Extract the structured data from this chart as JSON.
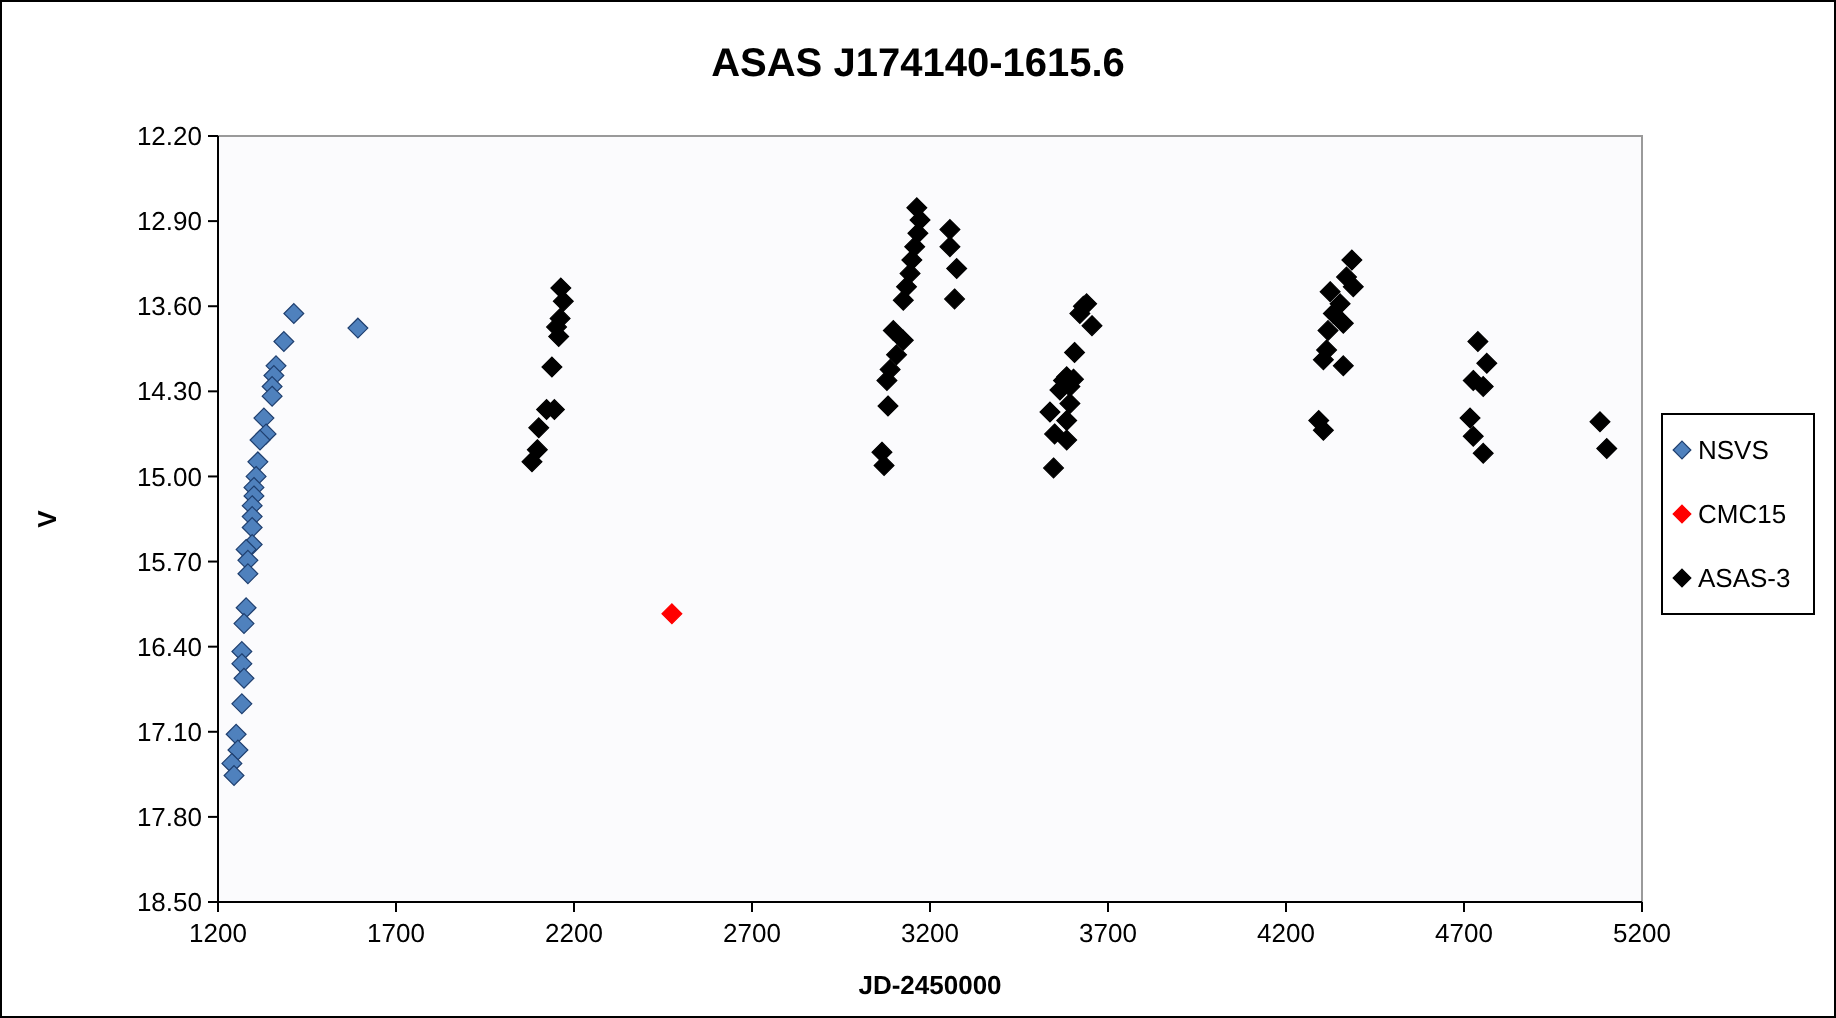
{
  "chart_data": {
    "type": "scatter",
    "title": "ASAS J174140-1615.6",
    "xlabel": "JD-2450000",
    "ylabel": "V",
    "xlim": [
      1200,
      5200
    ],
    "xticks": [
      1200,
      1700,
      2200,
      2700,
      3200,
      3700,
      4200,
      4700,
      5200
    ],
    "ylim": [
      18.5,
      12.2
    ],
    "yticks": [
      {
        "value": 12.2,
        "label": "12.20"
      },
      {
        "value": 12.9,
        "label": "12.90"
      },
      {
        "value": 13.6,
        "label": "13.60"
      },
      {
        "value": 14.3,
        "label": "14.30"
      },
      {
        "value": 15.0,
        "label": "15.00"
      },
      {
        "value": 15.7,
        "label": "15.70"
      },
      {
        "value": 16.4,
        "label": "16.40"
      },
      {
        "value": 17.1,
        "label": "17.10"
      },
      {
        "value": 17.8,
        "label": "17.80"
      },
      {
        "value": 18.5,
        "label": "18.50"
      }
    ],
    "grid": false,
    "legend": "right",
    "marker": "diamond",
    "series": [
      {
        "name": "NSVS",
        "color": "#4f81bd",
        "x": [
          1413,
          1385,
          1363,
          1357,
          1352,
          1352,
          1329,
          1335,
          1318,
          1312,
          1307,
          1301,
          1301,
          1296,
          1296,
          1296,
          1296,
          1279,
          1284,
          1284,
          1279,
          1273,
          1267,
          1267,
          1273,
          1267,
          1251,
          1256,
          1239,
          1245,
          1593
        ],
        "values": [
          13.66,
          13.89,
          14.09,
          14.17,
          14.26,
          14.34,
          14.52,
          14.65,
          14.7,
          14.88,
          15.0,
          15.09,
          15.16,
          15.24,
          15.33,
          15.42,
          15.56,
          15.6,
          15.69,
          15.8,
          16.08,
          16.21,
          16.44,
          16.54,
          16.66,
          16.87,
          17.12,
          17.25,
          17.36,
          17.46,
          13.78
        ]
      },
      {
        "name": "CMC15",
        "color": "#ff0000",
        "x": [
          2475
        ],
        "values": [
          16.13
        ]
      },
      {
        "name": "ASAS-3",
        "color": "#000000",
        "x": [
          2163,
          2170,
          2161,
          2151,
          2157,
          2138,
          2123,
          2145,
          2101,
          2097,
          2082,
          3163,
          3172,
          3166,
          3157,
          3149,
          3144,
          3134,
          3125,
          3097,
          3125,
          3106,
          3088,
          3079,
          3082,
          3065,
          3071,
          3256,
          3256,
          3275,
          3269,
          3640,
          3621,
          3655,
          3606,
          3584,
          3593,
          3565,
          3593,
          3537,
          3584,
          3550,
          3584,
          3547,
          3631,
          3603,
          3575,
          4385,
          4370,
          4389,
          4324,
          4352,
          4333,
          4361,
          4318,
          4314,
          4305,
          4361,
          4292,
          4305,
          4739,
          4764,
          4726,
          4754,
          4717,
          4726,
          4754,
          5082,
          5101
        ],
        "values": [
          13.45,
          13.56,
          13.7,
          13.77,
          13.85,
          14.1,
          14.45,
          14.45,
          14.6,
          14.78,
          14.88,
          12.79,
          12.89,
          13.0,
          13.11,
          13.22,
          13.33,
          13.44,
          13.55,
          13.8,
          13.88,
          14.0,
          14.12,
          14.21,
          14.42,
          14.8,
          14.91,
          12.97,
          13.11,
          13.29,
          13.54,
          13.58,
          13.66,
          13.76,
          13.98,
          14.18,
          14.26,
          14.29,
          14.4,
          14.47,
          14.54,
          14.65,
          14.7,
          14.93,
          13.6,
          14.2,
          14.21,
          13.22,
          13.36,
          13.44,
          13.48,
          13.58,
          13.66,
          13.74,
          13.8,
          13.96,
          14.04,
          14.09,
          14.54,
          14.62,
          13.89,
          14.07,
          14.21,
          14.26,
          14.52,
          14.67,
          14.81,
          14.55,
          14.77
        ]
      }
    ]
  }
}
